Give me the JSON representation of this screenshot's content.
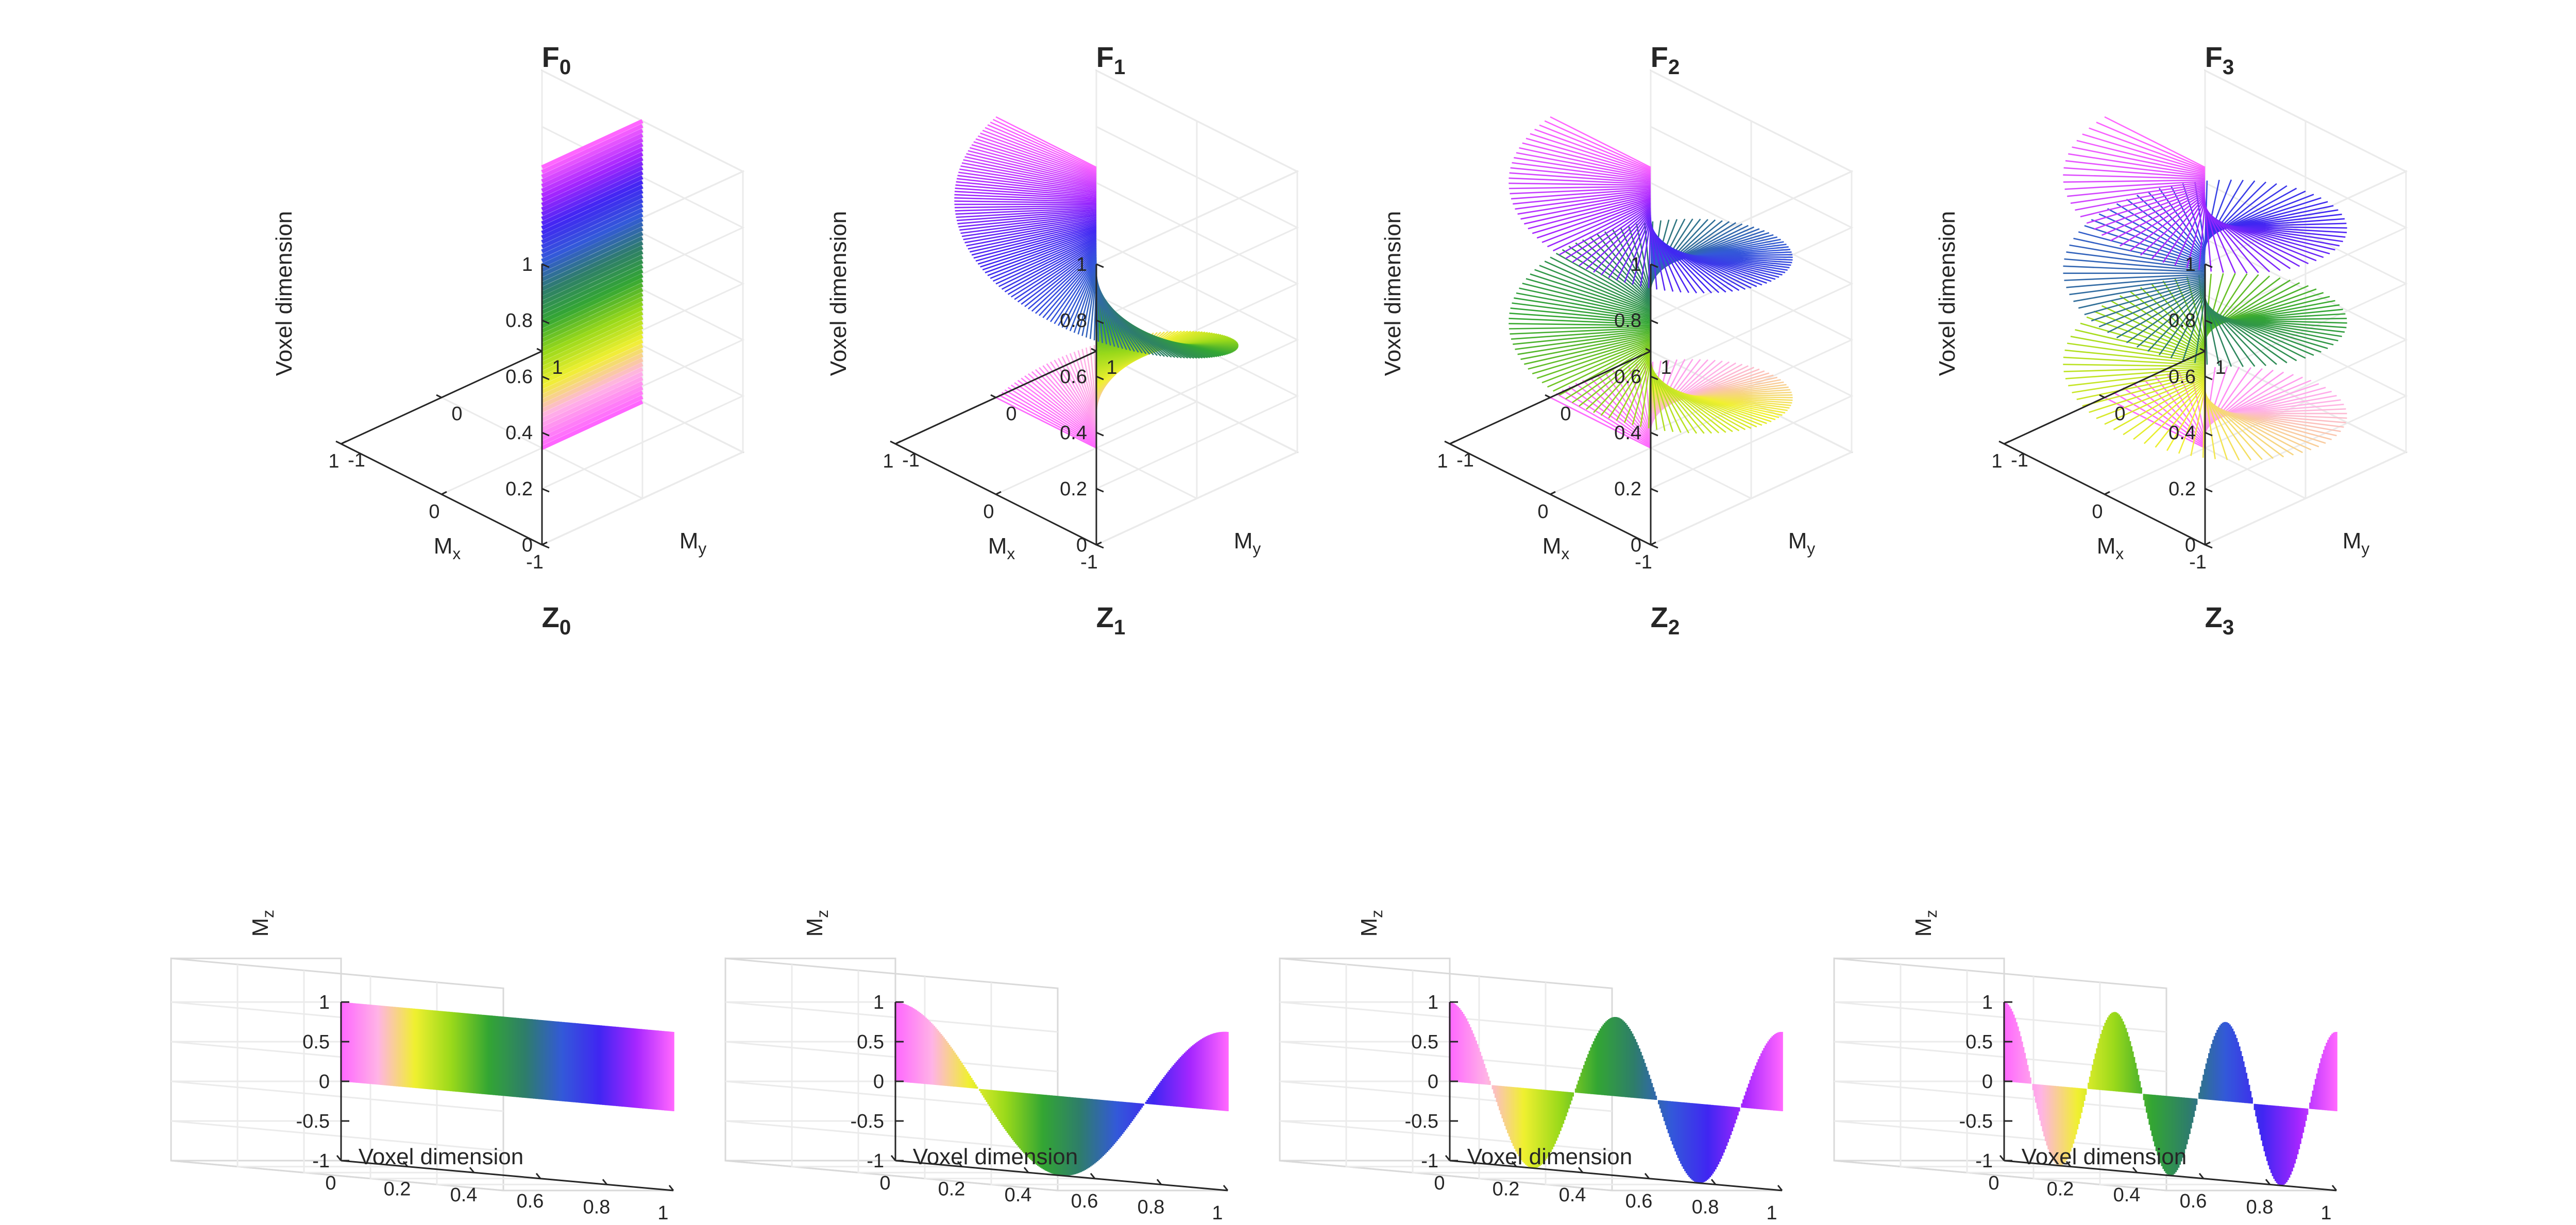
{
  "figure": {
    "background": "#ffffff",
    "colormap": [
      "#ff66ff",
      "#ffb3e6",
      "#f0f030",
      "#99d91a",
      "#33a633",
      "#2e7d6b",
      "#3359d9",
      "#4026f2",
      "#a626ff",
      "#ff66ff"
    ]
  },
  "chart_data": [
    {
      "panel": "F0",
      "type": "surface3d",
      "title": "F",
      "subscript": "0",
      "xlabel": "M",
      "xlabel_sub": "x",
      "ylabel": "M",
      "ylabel_sub": "y",
      "zlabel": "Voxel dimension",
      "xlim": [
        -1,
        1
      ],
      "ylim": [
        -1,
        1
      ],
      "zlim": [
        0,
        1
      ],
      "xticks": [
        "-1",
        "0",
        "1"
      ],
      "yticks": [
        "-1",
        "0",
        "1"
      ],
      "zticks": [
        "0",
        "0.2",
        "0.4",
        "0.6",
        "0.8",
        "1"
      ],
      "order": 0,
      "function": "M_x = cos(2π·order·z), M_y = sin(2π·order·z)"
    },
    {
      "panel": "F1",
      "type": "surface3d",
      "title": "F",
      "subscript": "1",
      "xlabel": "M",
      "xlabel_sub": "x",
      "ylabel": "M",
      "ylabel_sub": "y",
      "zlabel": "Voxel dimension",
      "xlim": [
        -1,
        1
      ],
      "ylim": [
        -1,
        1
      ],
      "zlim": [
        0,
        1
      ],
      "xticks": [
        "-1",
        "0",
        "1"
      ],
      "yticks": [
        "-1",
        "0",
        "1"
      ],
      "zticks": [
        "0",
        "0.2",
        "0.4",
        "0.6",
        "0.8",
        "1"
      ],
      "order": 1,
      "function": "M_x = cos(2π·order·z), M_y = sin(2π·order·z)"
    },
    {
      "panel": "F2",
      "type": "surface3d",
      "title": "F",
      "subscript": "2",
      "xlabel": "M",
      "xlabel_sub": "x",
      "ylabel": "M",
      "ylabel_sub": "y",
      "zlabel": "Voxel dimension",
      "xlim": [
        -1,
        1
      ],
      "ylim": [
        -1,
        1
      ],
      "zlim": [
        0,
        1
      ],
      "xticks": [
        "-1",
        "0",
        "1"
      ],
      "yticks": [
        "-1",
        "0",
        "1"
      ],
      "zticks": [
        "0",
        "0.2",
        "0.4",
        "0.6",
        "0.8",
        "1"
      ],
      "order": 2,
      "function": "M_x = cos(2π·order·z), M_y = sin(2π·order·z)"
    },
    {
      "panel": "F3",
      "type": "surface3d",
      "title": "F",
      "subscript": "3",
      "xlabel": "M",
      "xlabel_sub": "x",
      "ylabel": "M",
      "ylabel_sub": "y",
      "zlabel": "Voxel dimension",
      "xlim": [
        -1,
        1
      ],
      "ylim": [
        -1,
        1
      ],
      "zlim": [
        0,
        1
      ],
      "xticks": [
        "-1",
        "0",
        "1"
      ],
      "yticks": [
        "-1",
        "0",
        "1"
      ],
      "zticks": [
        "0",
        "0.2",
        "0.4",
        "0.6",
        "0.8",
        "1"
      ],
      "order": 3,
      "function": "M_x = cos(2π·order·z), M_y = sin(2π·order·z)"
    },
    {
      "panel": "Z0",
      "type": "surface3d",
      "title": "Z",
      "subscript": "0",
      "xlabel": "Voxel dimension",
      "ylabel": "M",
      "ylabel_sub": "z",
      "xlim": [
        0,
        1
      ],
      "zlim": [
        -1,
        1
      ],
      "xticks": [
        "0",
        "0.2",
        "0.4",
        "0.6",
        "0.8",
        "1"
      ],
      "zticks": [
        "-1",
        "-0.5",
        "0",
        "0.5",
        "1"
      ],
      "order": 0,
      "function": "M_z = cos(2π·order·x)"
    },
    {
      "panel": "Z1",
      "type": "surface3d",
      "title": "Z",
      "subscript": "1",
      "xlabel": "Voxel dimension",
      "ylabel": "M",
      "ylabel_sub": "z",
      "xlim": [
        0,
        1
      ],
      "zlim": [
        -1,
        1
      ],
      "xticks": [
        "0",
        "0.2",
        "0.4",
        "0.6",
        "0.8",
        "1"
      ],
      "zticks": [
        "-1",
        "-0.5",
        "0",
        "0.5",
        "1"
      ],
      "order": 1,
      "function": "M_z = cos(2π·order·x)"
    },
    {
      "panel": "Z2",
      "type": "surface3d",
      "title": "Z",
      "subscript": "2",
      "xlabel": "Voxel dimension",
      "ylabel": "M",
      "ylabel_sub": "z",
      "xlim": [
        0,
        1
      ],
      "zlim": [
        -1,
        1
      ],
      "xticks": [
        "0",
        "0.2",
        "0.4",
        "0.6",
        "0.8",
        "1"
      ],
      "zticks": [
        "-1",
        "-0.5",
        "0",
        "0.5",
        "1"
      ],
      "order": 2,
      "function": "M_z = cos(2π·order·x)"
    },
    {
      "panel": "Z3",
      "type": "surface3d",
      "title": "Z",
      "subscript": "3",
      "xlabel": "Voxel dimension",
      "ylabel": "M",
      "ylabel_sub": "z",
      "xlim": [
        0,
        1
      ],
      "zlim": [
        -1,
        1
      ],
      "xticks": [
        "0",
        "0.2",
        "0.4",
        "0.6",
        "0.8",
        "1"
      ],
      "zticks": [
        "-1",
        "-0.5",
        "0",
        "0.5",
        "1"
      ],
      "order": 3,
      "function": "M_z = cos(2π·order·x)"
    }
  ]
}
